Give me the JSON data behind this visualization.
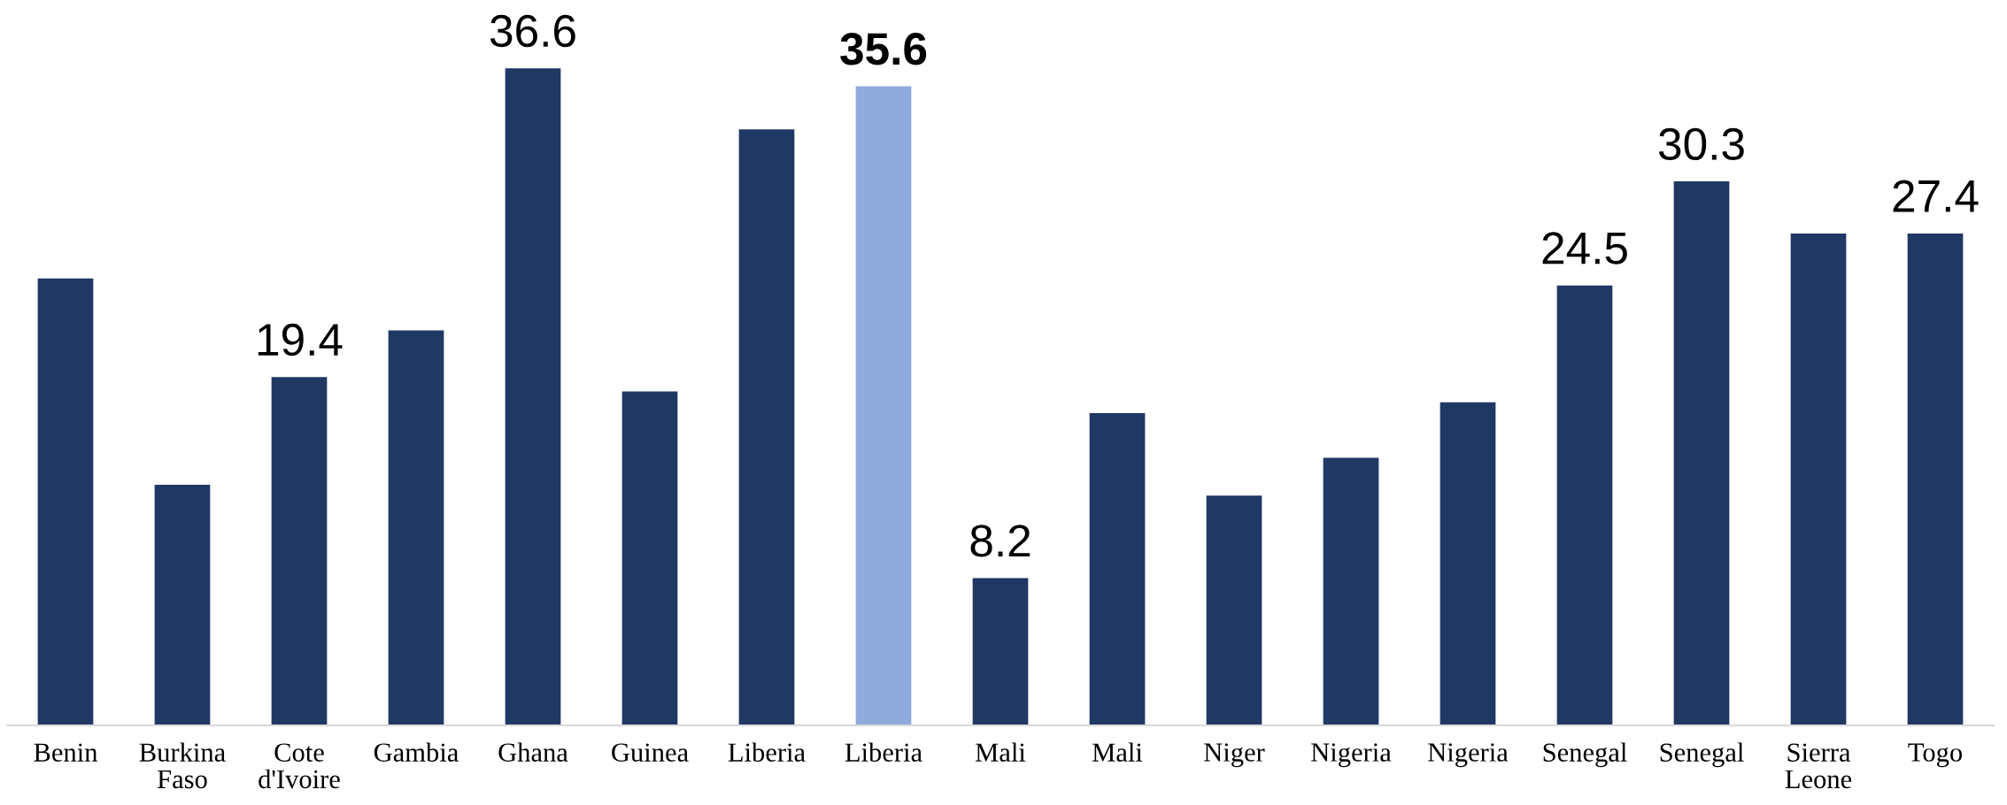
{
  "chart_data": {
    "type": "bar",
    "categories": [
      "Benin",
      "Burkina Faso",
      "Cote d'Ivoire",
      "Gambia",
      "Ghana",
      "Guinea",
      "Liberia",
      "Liberia",
      "Mali",
      "Mali",
      "Niger",
      "Nigeria",
      "Nigeria",
      "Senegal",
      "Senegal",
      "Sierra Leone",
      "Togo"
    ],
    "values": [
      24.9,
      13.4,
      19.4,
      22.0,
      36.6,
      18.6,
      33.2,
      35.6,
      8.2,
      17.4,
      12.8,
      14.9,
      18.0,
      24.5,
      30.3,
      27.4,
      27.4
    ],
    "colors": [
      "#203864",
      "#203864",
      "#203864",
      "#203864",
      "#203864",
      "#203864",
      "#203864",
      "#8faadc",
      "#203864",
      "#203864",
      "#203864",
      "#203864",
      "#203864",
      "#203864",
      "#203864",
      "#203864",
      "#203864"
    ],
    "value_labels": [
      null,
      null,
      "19.4",
      null,
      "36.6",
      null,
      null,
      "35.6",
      "8.2",
      null,
      null,
      null,
      null,
      "24.5",
      "30.3",
      null,
      "27.4"
    ],
    "tick_labels": "x"
  }
}
